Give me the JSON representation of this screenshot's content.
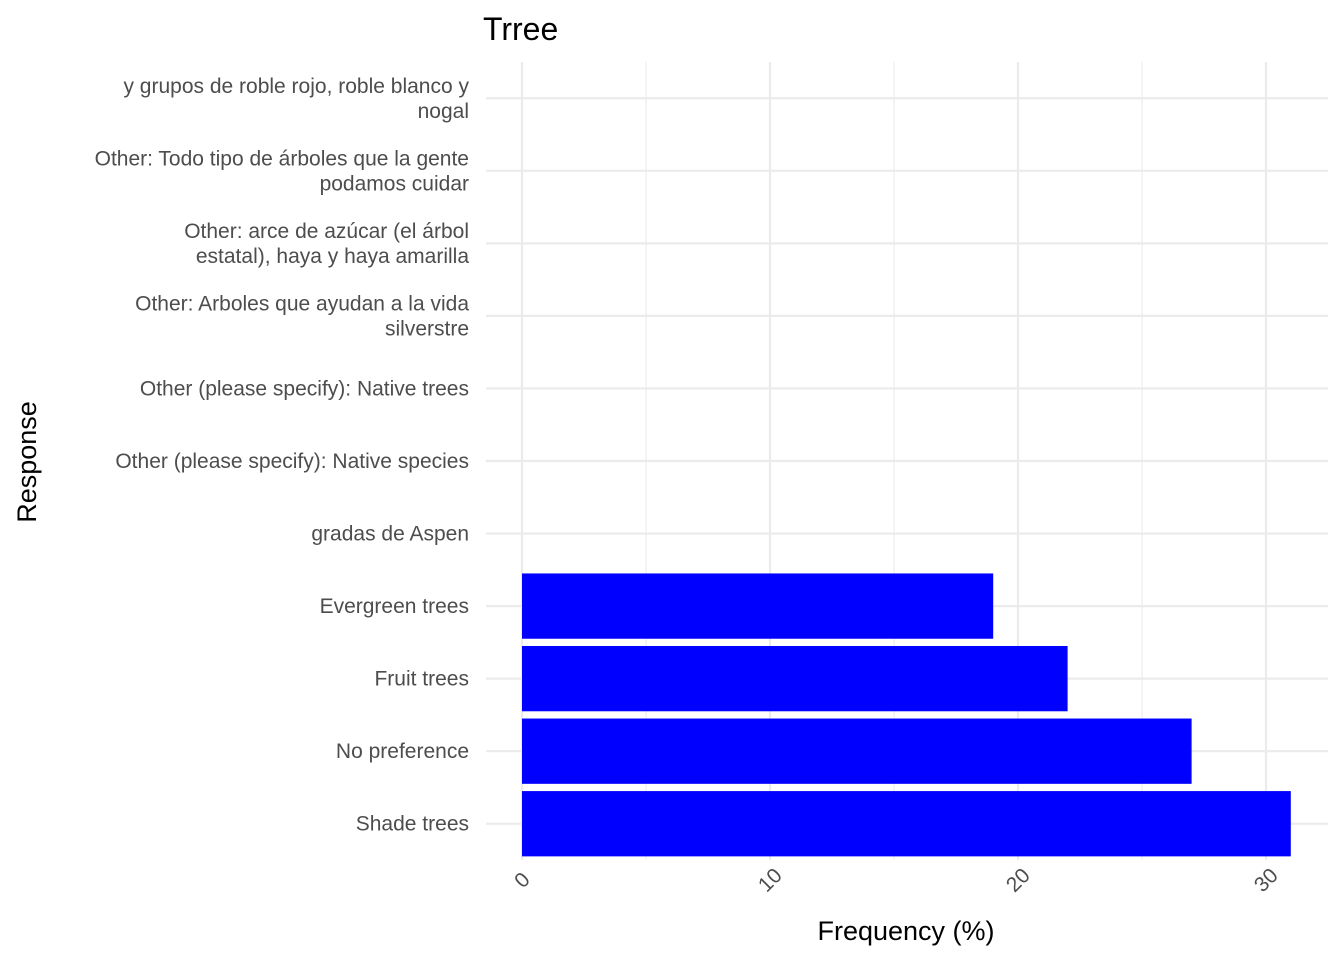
{
  "chart_data": {
    "type": "bar",
    "orientation": "horizontal",
    "title": "Trree",
    "xlabel": "Frequency (%)",
    "ylabel": "Response",
    "xlim": [
      0,
      31
    ],
    "xticks": [
      0,
      10,
      20,
      30
    ],
    "xtick_labels": [
      "0",
      "10",
      "20",
      "30"
    ],
    "grid": true,
    "legend": "none",
    "bar_color": "#0000ff",
    "categories": [
      {
        "lines": [
          "Shade trees"
        ]
      },
      {
        "lines": [
          "No preference"
        ]
      },
      {
        "lines": [
          "Fruit trees"
        ]
      },
      {
        "lines": [
          "Evergreen trees"
        ]
      },
      {
        "lines": [
          "gradas de Aspen"
        ]
      },
      {
        "lines": [
          "Other (please specify): Native species"
        ]
      },
      {
        "lines": [
          "Other (please specify): Native trees"
        ]
      },
      {
        "lines": [
          "Other: Arboles que ayudan a la vida",
          "silverstre"
        ]
      },
      {
        "lines": [
          "Other: arce de azúcar (el árbol",
          "estatal), haya y haya amarilla"
        ]
      },
      {
        "lines": [
          "Other: Todo tipo de árboles que la gente",
          "podamos cuidar"
        ]
      },
      {
        "lines": [
          "y grupos de roble rojo, roble blanco y",
          "nogal"
        ]
      }
    ],
    "values": [
      31,
      27,
      22,
      19,
      0,
      0,
      0,
      0,
      0,
      0,
      0
    ]
  }
}
